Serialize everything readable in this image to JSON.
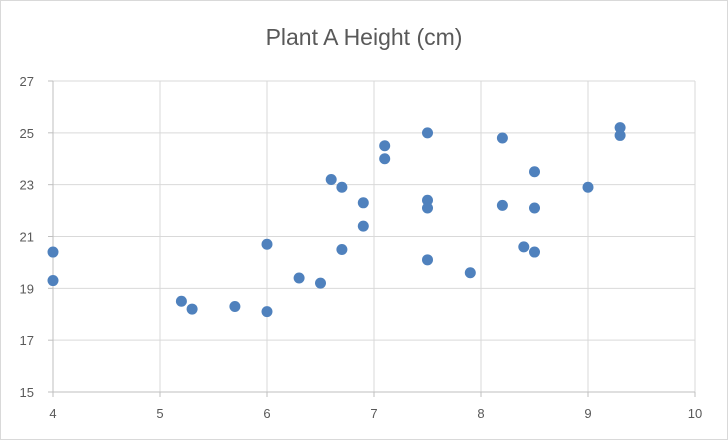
{
  "chart_data": {
    "type": "scatter",
    "title": "Plant A Height (cm)",
    "xlabel": "",
    "ylabel": "",
    "xlim": [
      4,
      10
    ],
    "ylim": [
      15,
      27
    ],
    "xticks": [
      4,
      5,
      6,
      7,
      8,
      9,
      10
    ],
    "yticks": [
      15,
      17,
      19,
      21,
      23,
      25,
      27
    ],
    "grid": true,
    "legend": "none",
    "series": [
      {
        "color": "#4f81bd",
        "points": [
          {
            "x": 4.0,
            "y": 20.4
          },
          {
            "x": 4.0,
            "y": 19.3
          },
          {
            "x": 5.2,
            "y": 18.5
          },
          {
            "x": 5.3,
            "y": 18.2
          },
          {
            "x": 5.7,
            "y": 18.3
          },
          {
            "x": 6.0,
            "y": 18.1
          },
          {
            "x": 6.0,
            "y": 20.7
          },
          {
            "x": 6.3,
            "y": 19.4
          },
          {
            "x": 6.5,
            "y": 19.2
          },
          {
            "x": 6.6,
            "y": 23.2
          },
          {
            "x": 6.7,
            "y": 22.9
          },
          {
            "x": 6.7,
            "y": 20.5
          },
          {
            "x": 6.9,
            "y": 22.3
          },
          {
            "x": 6.9,
            "y": 21.4
          },
          {
            "x": 7.1,
            "y": 24.5
          },
          {
            "x": 7.1,
            "y": 24.0
          },
          {
            "x": 7.5,
            "y": 25.0
          },
          {
            "x": 7.5,
            "y": 22.4
          },
          {
            "x": 7.5,
            "y": 22.1
          },
          {
            "x": 7.5,
            "y": 20.1
          },
          {
            "x": 7.9,
            "y": 19.6
          },
          {
            "x": 8.2,
            "y": 24.8
          },
          {
            "x": 8.2,
            "y": 22.2
          },
          {
            "x": 8.4,
            "y": 20.6
          },
          {
            "x": 8.5,
            "y": 23.5
          },
          {
            "x": 8.5,
            "y": 22.1
          },
          {
            "x": 8.5,
            "y": 20.4
          },
          {
            "x": 9.0,
            "y": 22.9
          },
          {
            "x": 9.3,
            "y": 25.2
          },
          {
            "x": 9.3,
            "y": 24.9
          }
        ]
      }
    ]
  }
}
